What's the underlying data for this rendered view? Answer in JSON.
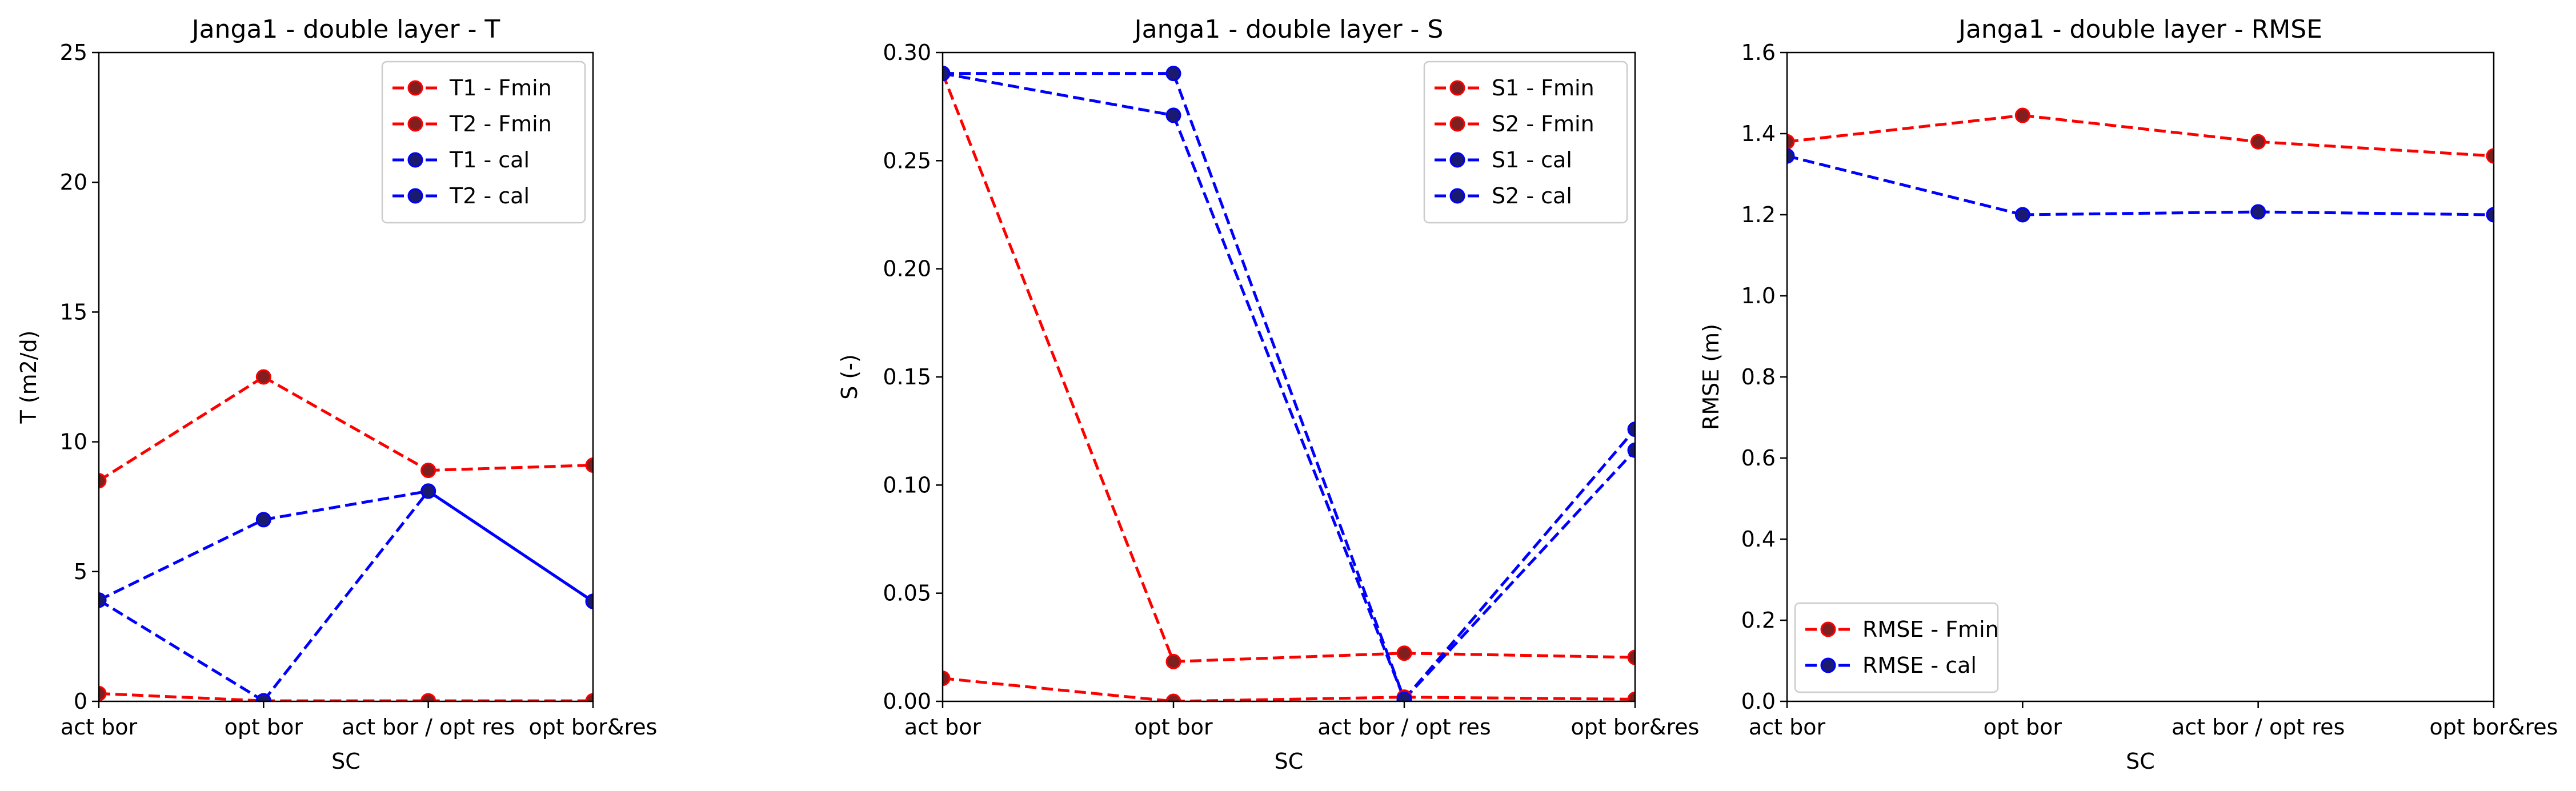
{
  "chart_data": [
    {
      "type": "line",
      "title": "Janga1 - double layer - T",
      "xlabel": "SC",
      "ylabel": "T (m2/d)",
      "categories": [
        "act bor",
        "opt bor",
        "act bor / opt res",
        "opt bor&res"
      ],
      "ylim": [
        0,
        25
      ],
      "yticks": [
        "0",
        "5",
        "10",
        "15",
        "20",
        "25"
      ],
      "grid": false,
      "legend_position": "top-right",
      "series": [
        {
          "name": "T1 - Fmin",
          "color": "#ff0000",
          "dashed": true,
          "values": [
            0.3,
            0.02,
            0.02,
            0.02
          ]
        },
        {
          "name": "T2 - Fmin",
          "color": "#ff0000",
          "dashed": true,
          "values": [
            8.5,
            12.5,
            8.9,
            9.1
          ]
        },
        {
          "name": "T1 - cal",
          "color": "#0000ff",
          "dashed": true,
          "values": [
            3.9,
            0.02,
            8.1,
            3.85
          ]
        },
        {
          "name": "T2 - cal",
          "color": "#0000ff",
          "dashed": true,
          "segments_solid": [
            2
          ],
          "values": [
            3.9,
            7.0,
            8.1,
            3.85
          ]
        }
      ]
    },
    {
      "type": "line",
      "title": "Janga1 - double layer - S",
      "xlabel": "SC",
      "ylabel": "S (-)",
      "categories": [
        "act bor",
        "opt bor",
        "act bor / opt res",
        "opt bor&res"
      ],
      "ylim": [
        0,
        0.31
      ],
      "yticks": [
        "0.00",
        "0.05",
        "0.10",
        "0.15",
        "0.20",
        "0.25",
        "0.30"
      ],
      "grid": false,
      "legend_position": "top-right",
      "series": [
        {
          "name": "S1 - Fmin",
          "color": "#ff0000",
          "dashed": true,
          "values": [
            0.011,
            0.0,
            0.002,
            0.001
          ]
        },
        {
          "name": "S2 - Fmin",
          "color": "#ff0000",
          "dashed": true,
          "values": [
            0.3,
            0.019,
            0.023,
            0.021
          ]
        },
        {
          "name": "S1 - cal",
          "color": "#0000ff",
          "dashed": true,
          "values": [
            0.3,
            0.3,
            0.001,
            0.13
          ]
        },
        {
          "name": "S2 - cal",
          "color": "#0000ff",
          "dashed": true,
          "values": [
            0.3,
            0.28,
            0.001,
            0.12
          ]
        }
      ]
    },
    {
      "type": "line",
      "title": "Janga1 - double layer - RMSE",
      "xlabel": "SC",
      "ylabel": "RMSE (m)",
      "categories": [
        "act bor",
        "opt bor",
        "act bor / opt res",
        "opt bor&res"
      ],
      "ylim": [
        0,
        1.6
      ],
      "yticks": [
        "0.0",
        "0.2",
        "0.4",
        "0.6",
        "0.8",
        "1.0",
        "1.2",
        "1.4",
        "1.6"
      ],
      "grid": false,
      "legend_position": "bottom-left",
      "series": [
        {
          "name": "RMSE - Fmin",
          "color": "#ff0000",
          "dashed": true,
          "values": [
            1.38,
            1.445,
            1.38,
            1.345
          ]
        },
        {
          "name": "RMSE - cal",
          "color": "#0000ff",
          "dashed": true,
          "values": [
            1.345,
            1.2,
            1.207,
            1.2
          ]
        }
      ]
    }
  ]
}
